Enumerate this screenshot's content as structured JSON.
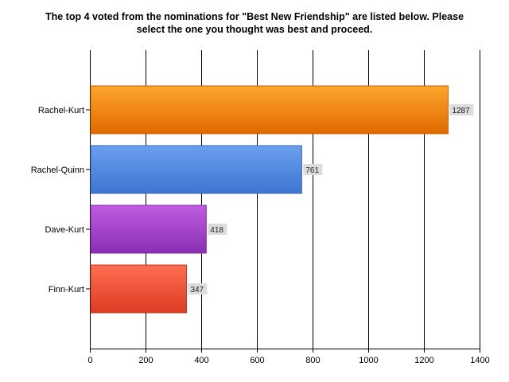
{
  "chart_data": {
    "type": "bar",
    "orientation": "horizontal",
    "title": "The top 4 voted from the nominations for \"Best New Friendship\" are listed below. Please select the one you thought was best and proceed.",
    "xlabel": "",
    "ylabel": "",
    "categories": [
      "Rachel-Kurt",
      "Rachel-Quinn",
      "Dave-Kurt",
      "Finn-Kurt"
    ],
    "values": [
      1287,
      761,
      418,
      347
    ],
    "xlim": [
      0,
      1400
    ],
    "x_ticks": [
      0,
      200,
      400,
      600,
      800,
      1000,
      1200,
      1400
    ],
    "grid": true,
    "legend": "none",
    "colors": [
      {
        "top": "#ffa62e",
        "bottom": "#e06a00",
        "stroke": "#c76000"
      },
      {
        "top": "#6a9fee",
        "bottom": "#3f74d2",
        "stroke": "#3565bb"
      },
      {
        "top": "#c05ce0",
        "bottom": "#8a2fb2",
        "stroke": "#7a29a0"
      },
      {
        "top": "#ff6e52",
        "bottom": "#dc3c22",
        "stroke": "#c2341e"
      }
    ]
  }
}
